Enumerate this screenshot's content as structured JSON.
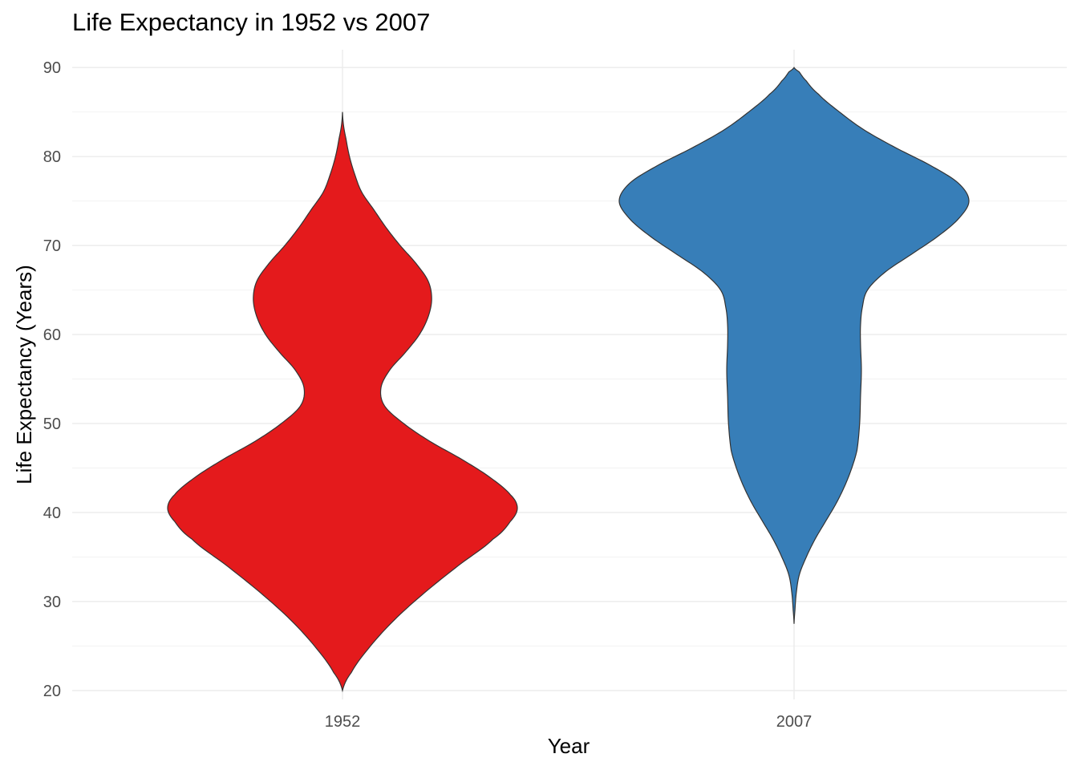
{
  "chart_data": {
    "type": "violin",
    "title": "Life Expectancy in 1952 vs 2007",
    "xlabel": "Year",
    "ylabel": "Life Expectancy (Years)",
    "categories": [
      "1952",
      "2007"
    ],
    "ylim": [
      19,
      92
    ],
    "yticks": [
      20,
      30,
      40,
      50,
      60,
      70,
      80,
      90
    ],
    "grid": true,
    "legend": "none",
    "series": [
      {
        "category": "1952",
        "color": "#E41A1C",
        "range": [
          20,
          85
        ],
        "density": [
          [
            20,
            0.0
          ],
          [
            22,
            0.05
          ],
          [
            25,
            0.16
          ],
          [
            28,
            0.3
          ],
          [
            31,
            0.47
          ],
          [
            34,
            0.66
          ],
          [
            37,
            0.86
          ],
          [
            39,
            0.96
          ],
          [
            40.5,
            1.0
          ],
          [
            42,
            0.96
          ],
          [
            44,
            0.84
          ],
          [
            46,
            0.68
          ],
          [
            48,
            0.5
          ],
          [
            50,
            0.35
          ],
          [
            52,
            0.24
          ],
          [
            54,
            0.22
          ],
          [
            56,
            0.27
          ],
          [
            58,
            0.36
          ],
          [
            60,
            0.44
          ],
          [
            62,
            0.49
          ],
          [
            64,
            0.51
          ],
          [
            66,
            0.49
          ],
          [
            68,
            0.42
          ],
          [
            70,
            0.33
          ],
          [
            72,
            0.25
          ],
          [
            74,
            0.18
          ],
          [
            76,
            0.11
          ],
          [
            78,
            0.07
          ],
          [
            80,
            0.04
          ],
          [
            82,
            0.02
          ],
          [
            83.5,
            0.006
          ],
          [
            85,
            0.0
          ]
        ]
      },
      {
        "category": "2007",
        "color": "#377EB8",
        "range": [
          27.5,
          90
        ],
        "density": [
          [
            27.5,
            0.0
          ],
          [
            29,
            0.005
          ],
          [
            31,
            0.013
          ],
          [
            33,
            0.03
          ],
          [
            35,
            0.07
          ],
          [
            37,
            0.12
          ],
          [
            39,
            0.18
          ],
          [
            41,
            0.24
          ],
          [
            43,
            0.29
          ],
          [
            45,
            0.33
          ],
          [
            47,
            0.36
          ],
          [
            50,
            0.375
          ],
          [
            53,
            0.38
          ],
          [
            56,
            0.385
          ],
          [
            59,
            0.38
          ],
          [
            61,
            0.38
          ],
          [
            63,
            0.39
          ],
          [
            65,
            0.42
          ],
          [
            67,
            0.52
          ],
          [
            69,
            0.67
          ],
          [
            71,
            0.82
          ],
          [
            73,
            0.94
          ],
          [
            75,
            1.0
          ],
          [
            77,
            0.94
          ],
          [
            79,
            0.78
          ],
          [
            81,
            0.58
          ],
          [
            83,
            0.4
          ],
          [
            85,
            0.26
          ],
          [
            87,
            0.14
          ],
          [
            88.5,
            0.07
          ],
          [
            89.5,
            0.03
          ],
          [
            90,
            0.0
          ]
        ]
      }
    ]
  }
}
